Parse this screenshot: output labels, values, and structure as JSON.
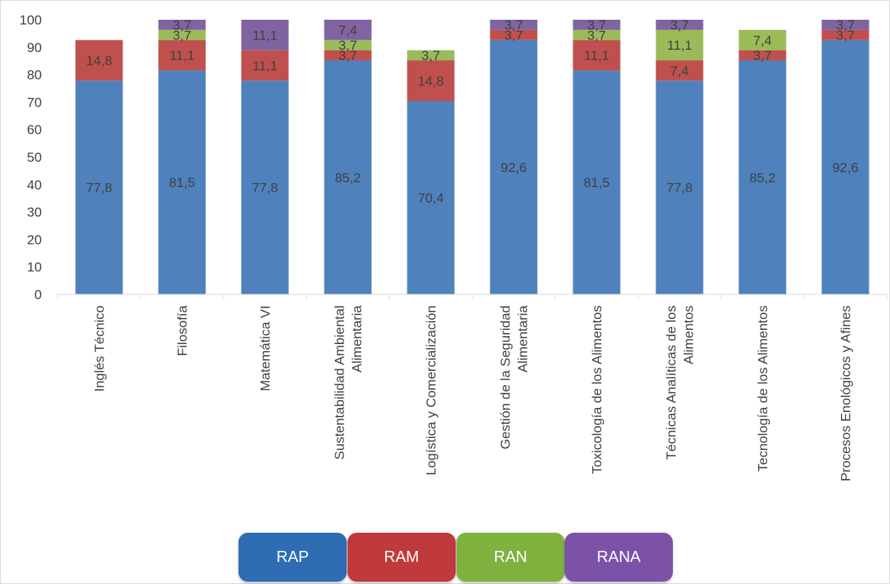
{
  "chart_data": {
    "type": "bar",
    "stacked": true,
    "ylim": [
      0,
      100
    ],
    "yticks": [
      0,
      10,
      20,
      30,
      40,
      50,
      60,
      70,
      80,
      90,
      100
    ],
    "grid": false,
    "legend_placement": "bottom",
    "categories": [
      [
        "Inglés Técnico"
      ],
      [
        "Filosofía"
      ],
      [
        "Matemática VI"
      ],
      [
        "Sustentabilidad Ambiental",
        "Alimentaria"
      ],
      [
        "Logística y Comercialización"
      ],
      [
        "Gestión de la Seguridad",
        "Alimentaria"
      ],
      [
        "Toxicología de los Alimentos"
      ],
      [
        "Técnicas Analíticas de los",
        "Alimentos"
      ],
      [
        "Tecnología de los Alimentos"
      ],
      [
        "Procesos Enológicos y Afines"
      ]
    ],
    "series": [
      {
        "name": "RAP",
        "color": "#4F81BD",
        "values": [
          77.8,
          81.5,
          77.8,
          85.2,
          70.4,
          92.6,
          81.5,
          77.8,
          85.2,
          92.6
        ],
        "labels": [
          "77,8",
          "81,5",
          "77,8",
          "85,2",
          "70,4",
          "92,6",
          "81,5",
          "77,8",
          "85,2",
          "92,6"
        ]
      },
      {
        "name": "RAM",
        "color": "#C0504D",
        "values": [
          14.8,
          11.1,
          11.1,
          3.7,
          14.8,
          3.7,
          11.1,
          7.4,
          3.7,
          3.7
        ],
        "labels": [
          "14,8",
          "11,1",
          "11,1",
          "3,7",
          "14,8",
          "3,7",
          "11,1",
          "7,4",
          "3,7",
          "3,7"
        ]
      },
      {
        "name": "RAN",
        "color": "#9BBB59",
        "values": [
          0,
          3.7,
          0,
          3.7,
          3.7,
          0,
          3.7,
          11.1,
          7.4,
          0
        ],
        "labels": [
          "",
          "3,7",
          "",
          "3,7",
          "3,7",
          "",
          "3,7",
          "11,1",
          "7,4",
          ""
        ]
      },
      {
        "name": "RANA",
        "color": "#8064A2",
        "values": [
          0,
          3.7,
          11.1,
          7.4,
          0,
          3.7,
          3.7,
          3.7,
          0,
          3.7
        ],
        "labels": [
          "",
          "3,7",
          "11,1",
          "7,4",
          "",
          "3,7",
          "3,7",
          "3,7",
          "",
          "3,7"
        ]
      }
    ]
  },
  "legend": {
    "items": [
      {
        "label": "RAP",
        "color": "#2E6DB4"
      },
      {
        "label": "RAM",
        "color": "#C0393B"
      },
      {
        "label": "RAN",
        "color": "#7FB13F"
      },
      {
        "label": "RANA",
        "color": "#7B52A8"
      }
    ]
  }
}
